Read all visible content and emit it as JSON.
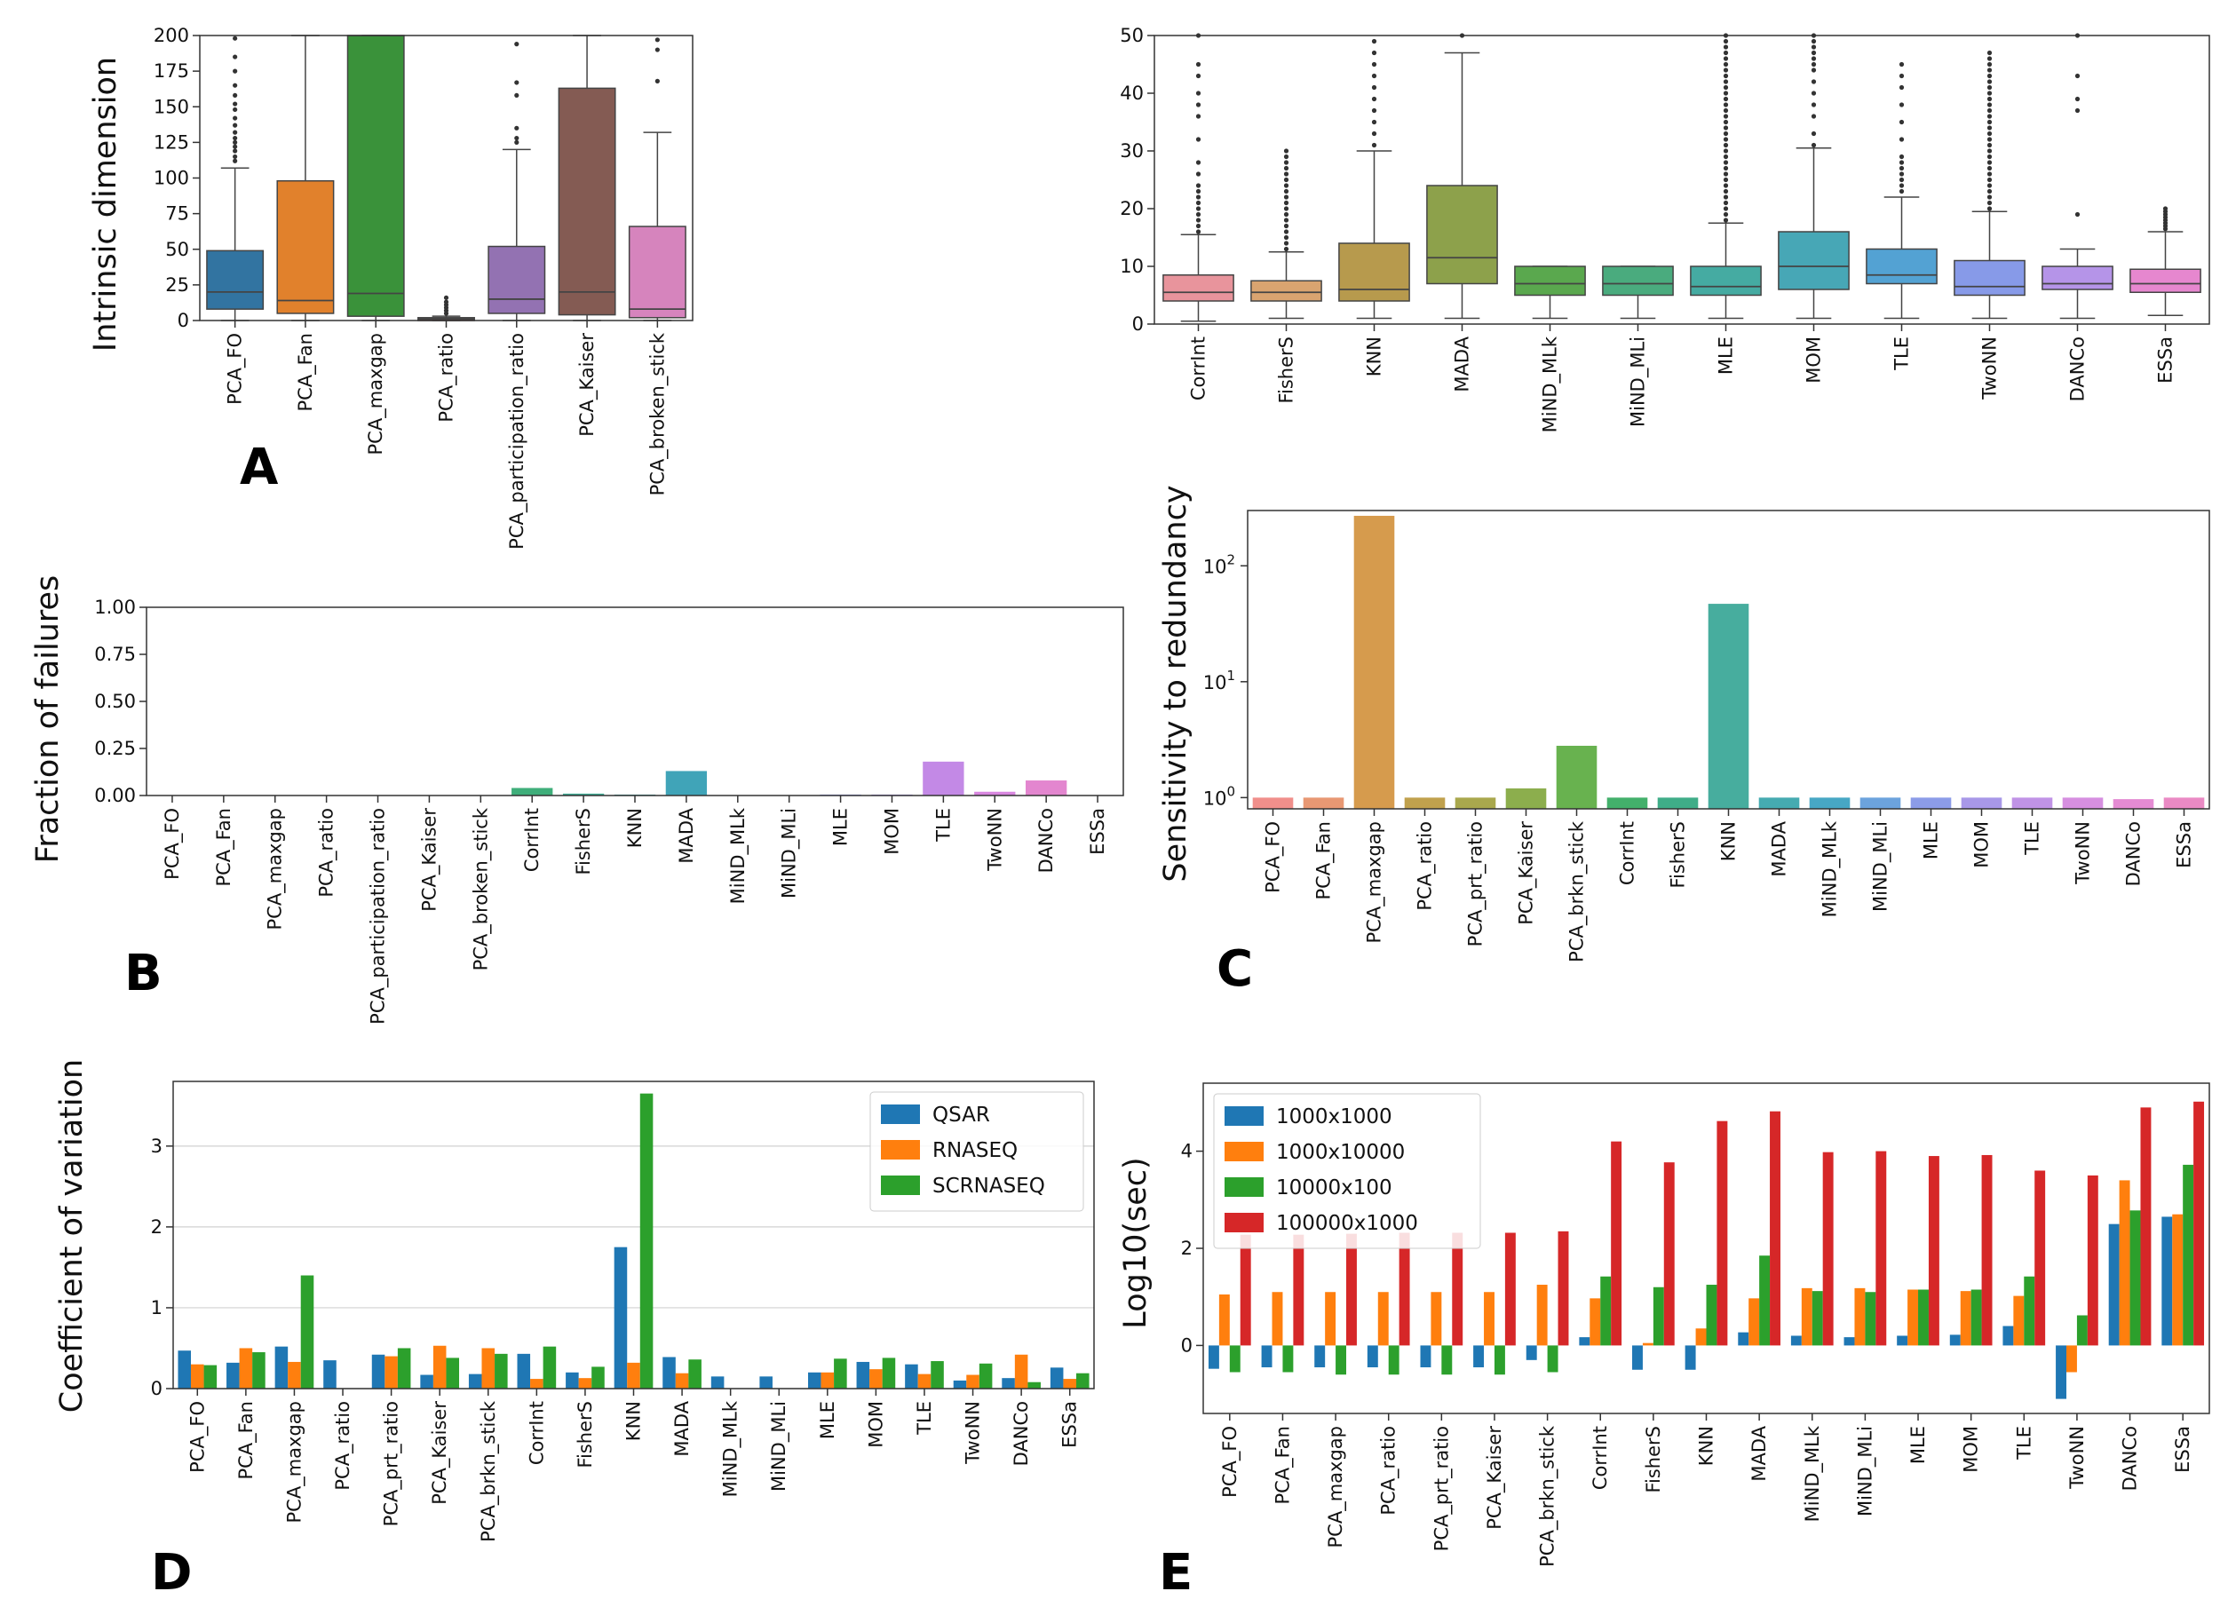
{
  "figure": {
    "colors": {
      "blue": "#1f77b4",
      "orange": "#ff7f0e",
      "green": "#2ca02c",
      "red": "#d62728",
      "purple": "#9467bd",
      "brown": "#8c564b",
      "pink": "#e377c2",
      "box_pink": "#e8949c",
      "box_orange_light": "#d9a470",
      "box_tan": "#b79a4d",
      "box_olive": "#8da14b",
      "box_lime": "#5aa84e",
      "box_seagreen": "#4aab7e",
      "box_teal": "#45aba2",
      "box_cyan": "#47a7b6",
      "box_skyblue": "#53a2d3",
      "box_blue": "#879ae8",
      "box_lavender": "#b594e8",
      "box_violet": "#d98fe0",
      "box_magenta": "#e687cf",
      "c_salmon": "#f08f8b"
    }
  },
  "chart_data": [
    {
      "panel": "A",
      "type": "box",
      "letter": "A",
      "ylabel": "Intrinsic dimension",
      "ylim": [
        0,
        200
      ],
      "yticks": [
        "0",
        "25",
        "50",
        "75",
        "100",
        "125",
        "150",
        "175",
        "200"
      ],
      "categories": [
        "PCA_FO",
        "PCA_Fan",
        "PCA_maxgap",
        "PCA_ratio",
        "PCA_participation_ratio",
        "PCA_Kaiser",
        "PCA_broken_stick"
      ],
      "boxes": [
        {
          "q1": 8,
          "median": 20,
          "q3": 49,
          "lw": 0,
          "uw": 107,
          "outliers": [
            112,
            115,
            119,
            122,
            125,
            128,
            132,
            137,
            142,
            148,
            152,
            158,
            165,
            175,
            185,
            198
          ],
          "color": "#3274a1"
        },
        {
          "q1": 5,
          "median": 14,
          "q3": 98,
          "lw": 0,
          "uw": 200,
          "outliers": [],
          "color": "#e1812c"
        },
        {
          "q1": 3,
          "median": 19,
          "q3": 200,
          "lw": 0,
          "uw": 200,
          "outliers": [],
          "color": "#3a923a"
        },
        {
          "q1": 0,
          "median": 1,
          "q3": 2,
          "lw": 0,
          "uw": 3,
          "outliers": [
            5,
            7,
            9,
            11,
            13,
            16
          ],
          "color": "#c03d3e"
        },
        {
          "q1": 5,
          "median": 15,
          "q3": 52,
          "lw": 0,
          "uw": 120,
          "outliers": [
            125,
            128,
            135,
            158,
            167,
            194
          ],
          "color": "#9372b2"
        },
        {
          "q1": 4,
          "median": 20,
          "q3": 163,
          "lw": 0,
          "uw": 200,
          "outliers": [],
          "color": "#845b53"
        },
        {
          "q1": 2,
          "median": 8,
          "q3": 66,
          "lw": 0,
          "uw": 132,
          "outliers": [
            168,
            190,
            197
          ],
          "color": "#d684bd"
        }
      ]
    },
    {
      "panel": "A2",
      "type": "box",
      "ylabel": "",
      "ylim": [
        0,
        50
      ],
      "yticks": [
        "0",
        "10",
        "20",
        "30",
        "40",
        "50"
      ],
      "categories": [
        "CorrInt",
        "FisherS",
        "KNN",
        "MADA",
        "MiND_MLk",
        "MiND_MLi",
        "MLE",
        "MOM",
        "TLE",
        "TwoNN",
        "DANCo",
        "ESSa"
      ],
      "boxes": [
        {
          "q1": 4,
          "median": 5.5,
          "q3": 8.5,
          "lw": 0.5,
          "uw": 15.5,
          "outliers": [
            16,
            17,
            18,
            19,
            20,
            21,
            22,
            23,
            24,
            26,
            28,
            32,
            36,
            38,
            40,
            43,
            45,
            50
          ],
          "color": "#e8949c"
        },
        {
          "q1": 4,
          "median": 5.5,
          "q3": 7.5,
          "lw": 1,
          "uw": 12.5,
          "outliers": [
            13,
            14,
            15,
            16,
            17,
            18,
            19,
            20,
            21,
            22,
            23,
            24,
            25,
            26,
            27,
            28,
            29,
            30
          ],
          "color": "#d9a470"
        },
        {
          "q1": 4,
          "median": 6,
          "q3": 14,
          "lw": 1,
          "uw": 30,
          "outliers": [
            31,
            33,
            35,
            37,
            39,
            41,
            43,
            45,
            47,
            49
          ],
          "color": "#b79a4d"
        },
        {
          "q1": 7,
          "median": 11.5,
          "q3": 24,
          "lw": 1,
          "uw": 47,
          "outliers": [
            50
          ],
          "color": "#8da14b"
        },
        {
          "q1": 5,
          "median": 7,
          "q3": 10,
          "lw": 1,
          "uw": 10,
          "outliers": [],
          "color": "#5aa84e"
        },
        {
          "q1": 5,
          "median": 7,
          "q3": 10,
          "lw": 1,
          "uw": 10,
          "outliers": [],
          "color": "#4aab7e"
        },
        {
          "q1": 5,
          "median": 6.5,
          "q3": 10,
          "lw": 1,
          "uw": 17.5,
          "outliers": [
            18,
            19,
            20,
            21,
            22,
            23,
            24,
            25,
            26,
            27,
            28,
            29,
            30,
            31,
            32,
            33,
            34,
            35,
            36,
            37,
            38,
            39,
            40,
            41,
            42,
            43,
            44,
            45,
            46,
            47,
            48,
            49,
            50
          ],
          "color": "#45aba2"
        },
        {
          "q1": 6,
          "median": 10,
          "q3": 16,
          "lw": 1,
          "uw": 30.5,
          "outliers": [
            31,
            33,
            36,
            38,
            40,
            42,
            44,
            45,
            46,
            47,
            48,
            49,
            50
          ],
          "color": "#47a7b6"
        },
        {
          "q1": 7,
          "median": 8.5,
          "q3": 13,
          "lw": 1,
          "uw": 22,
          "outliers": [
            23,
            24,
            25,
            26,
            27,
            28,
            29,
            32,
            35,
            38,
            41,
            43,
            45
          ],
          "color": "#53a2d3"
        },
        {
          "q1": 5,
          "median": 6.5,
          "q3": 11,
          "lw": 1,
          "uw": 19.5,
          "outliers": [
            20,
            21,
            22,
            23,
            24,
            25,
            26,
            27,
            28,
            29,
            30,
            31,
            32,
            33,
            34,
            35,
            36,
            37,
            38,
            39,
            40,
            41,
            42,
            43,
            44,
            45,
            46,
            47
          ],
          "color": "#879ae8"
        },
        {
          "q1": 6,
          "median": 7,
          "q3": 10,
          "lw": 1,
          "uw": 13,
          "outliers": [
            19,
            37,
            39,
            43,
            50
          ],
          "color": "#b594e8"
        },
        {
          "q1": 5.5,
          "median": 7,
          "q3": 9.5,
          "lw": 1.5,
          "uw": 16,
          "outliers": [
            16.5,
            17,
            17.5,
            18,
            18.5,
            19,
            19.5,
            20
          ],
          "color": "#e687cf"
        }
      ]
    },
    {
      "panel": "B",
      "type": "bar",
      "letter": "B",
      "ylabel": "Fraction of failures",
      "ylim": [
        0,
        1
      ],
      "yticks": [
        "0.00",
        "0.25",
        "0.50",
        "0.75",
        "1.00"
      ],
      "categories": [
        "PCA_FO",
        "PCA_Fan",
        "PCA_maxgap",
        "PCA_ratio",
        "PCA_participation_ratio",
        "PCA_Kaiser",
        "PCA_broken_stick",
        "CorrInt",
        "FisherS",
        "KNN",
        "MADA",
        "MiND_MLk",
        "MiND_MLi",
        "MLE",
        "MOM",
        "TLE",
        "TwoNN",
        "DANCo",
        "ESSa"
      ],
      "values": [
        0,
        0,
        0,
        0,
        0,
        0,
        0,
        0.04,
        0.01,
        0.005,
        0.13,
        0,
        0,
        0.005,
        0.005,
        0.18,
        0.02,
        0.08,
        0
      ],
      "bar_colors": [
        "#e8949c",
        "#e1905a",
        "#d09b3f",
        "#b8a23f",
        "#9ea93f",
        "#7fae43",
        "#4bb04f",
        "#3fae7a",
        "#3eaa94",
        "#3fa7a7",
        "#40a4b8",
        "#45a0c9",
        "#6b9be0",
        "#8c95e8",
        "#a98ee8",
        "#c389e6",
        "#d987e0",
        "#e386cf",
        "#e88bbe"
      ]
    },
    {
      "panel": "C",
      "type": "bar",
      "letter": "C",
      "yscale": "log",
      "ylabel": "Sensitivity to redundancy",
      "ylim": [
        0.8,
        300
      ],
      "yticks": [
        {
          "base": "10",
          "exp": "0"
        },
        {
          "base": "10",
          "exp": "1"
        },
        {
          "base": "10",
          "exp": "2"
        }
      ],
      "categories": [
        "PCA_FO",
        "PCA_Fan",
        "PCA_maxgap",
        "PCA_ratio",
        "PCA_prt_ratio",
        "PCA_Kaiser",
        "PCA_brkn_stick",
        "CorrInt",
        "FisherS",
        "KNN",
        "MADA",
        "MiND_MLk",
        "MiND_MLi",
        "MLE",
        "MOM",
        "TLE",
        "TwoNN",
        "DANCo",
        "ESSa"
      ],
      "values": [
        1,
        1,
        270,
        1,
        1,
        1.2,
        2.8,
        1,
        1,
        47,
        1,
        1,
        1,
        1,
        1,
        1,
        1,
        0.97,
        1
      ],
      "bar_colors": [
        "#f08f8b",
        "#e89873",
        "#d69b4d",
        "#c0a14d",
        "#a9a84d",
        "#8cae4d",
        "#68b24f",
        "#43b06b",
        "#3fad88",
        "#47ad9e",
        "#45abb1",
        "#47a7c4",
        "#6ca3dd",
        "#8c9ce8",
        "#a898e8",
        "#c093e6",
        "#d68fe0",
        "#e48bd3",
        "#ea8ac4"
      ]
    },
    {
      "panel": "D",
      "type": "bar",
      "letter": "D",
      "ylabel": "Coefficient of variation",
      "ylim": [
        0,
        3.8
      ],
      "yticks": [
        "0",
        "1",
        "2",
        "3"
      ],
      "categories": [
        "PCA_FO",
        "PCA_Fan",
        "PCA_maxgap",
        "PCA_ratio",
        "PCA_prt_ratio",
        "PCA_Kaiser",
        "PCA_brkn_stick",
        "CorrInt",
        "FisherS",
        "KNN",
        "MADA",
        "MiND_MLk",
        "MiND_MLi",
        "MLE",
        "MOM",
        "TLE",
        "TwoNN",
        "DANCo",
        "ESSa"
      ],
      "legend_position": "top-right",
      "series": [
        {
          "name": "QSAR",
          "color": "#1f77b4",
          "values": [
            0.47,
            0.32,
            0.52,
            0.35,
            0.42,
            0.17,
            0.18,
            0.43,
            0.2,
            1.75,
            0.39,
            0.15,
            0.15,
            0.2,
            0.33,
            0.3,
            0.1,
            0.13,
            0.26
          ]
        },
        {
          "name": "RNASEQ",
          "color": "#ff7f0e",
          "values": [
            0.3,
            0.5,
            0.33,
            0,
            0.4,
            0.53,
            0.5,
            0.12,
            0.13,
            0.32,
            0.19,
            0,
            0,
            0.2,
            0.24,
            0.18,
            0.17,
            0.42,
            0.12
          ]
        },
        {
          "name": "SCRNASEQ",
          "color": "#2ca02c",
          "values": [
            0.29,
            0.45,
            1.4,
            0,
            0.5,
            0.38,
            0.43,
            0.52,
            0.27,
            3.65,
            0.36,
            0,
            0,
            0.37,
            0.38,
            0.34,
            0.31,
            0.08,
            0.19
          ]
        }
      ]
    },
    {
      "panel": "E",
      "type": "bar",
      "letter": "E",
      "ylabel": "Log10(sec)",
      "ylim": [
        -1.4,
        5.4
      ],
      "yticks": [
        "0",
        "2",
        "4"
      ],
      "categories": [
        "PCA_FO",
        "PCA_Fan",
        "PCA_maxgap",
        "PCA_ratio",
        "PCA_prt_ratio",
        "PCA_Kaiser",
        "PCA_brkn_stick",
        "CorrInt",
        "FisherS",
        "KNN",
        "MADA",
        "MiND_MLk",
        "MiND_MLi",
        "MLE",
        "MOM",
        "TLE",
        "TwoNN",
        "DANCo",
        "ESSa"
      ],
      "legend_position": "top-left",
      "series": [
        {
          "name": "1000x1000",
          "color": "#1f77b4",
          "values": [
            -0.48,
            -0.45,
            -0.45,
            -0.45,
            -0.45,
            -0.45,
            -0.3,
            0.17,
            -0.5,
            -0.5,
            0.27,
            0.2,
            0.17,
            0.2,
            0.22,
            0.4,
            -1.1,
            2.5,
            2.65
          ]
        },
        {
          "name": "1000x10000",
          "color": "#ff7f0e",
          "values": [
            1.05,
            1.1,
            1.1,
            1.1,
            1.1,
            1.1,
            1.25,
            0.97,
            0.05,
            0.35,
            0.97,
            1.18,
            1.18,
            1.15,
            1.12,
            1.02,
            -0.55,
            3.4,
            2.7
          ]
        },
        {
          "name": "10000x100",
          "color": "#2ca02c",
          "values": [
            -0.55,
            -0.55,
            -0.6,
            -0.6,
            -0.6,
            -0.6,
            -0.55,
            1.42,
            1.2,
            1.25,
            1.85,
            1.12,
            1.1,
            1.15,
            1.15,
            1.42,
            0.62,
            2.78,
            3.72
          ]
        },
        {
          "name": "100000x1000",
          "color": "#d62728",
          "values": [
            2.28,
            2.28,
            2.3,
            2.32,
            2.32,
            2.32,
            2.35,
            4.2,
            3.77,
            4.62,
            4.82,
            3.98,
            4.0,
            3.9,
            3.92,
            3.6,
            3.5,
            4.9,
            5.02
          ]
        }
      ]
    }
  ]
}
